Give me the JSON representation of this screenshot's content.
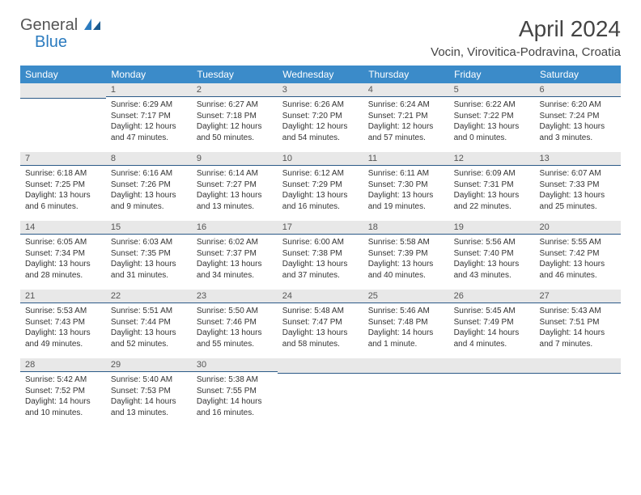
{
  "brand": {
    "general": "General",
    "blue": "Blue"
  },
  "title": "April 2024",
  "location": "Vocin, Virovitica-Podravina, Croatia",
  "colors": {
    "header_bg": "#3b8bc9",
    "header_text": "#ffffff",
    "daynum_bg": "#e8e8e8",
    "daynum_border": "#2c5a88",
    "text": "#333333",
    "title_color": "#444444",
    "logo_blue": "#2b7bbf"
  },
  "weekdays": [
    "Sunday",
    "Monday",
    "Tuesday",
    "Wednesday",
    "Thursday",
    "Friday",
    "Saturday"
  ],
  "weeks": [
    [
      {
        "num": "",
        "sunrise": "",
        "sunset": "",
        "daylight": ""
      },
      {
        "num": "1",
        "sunrise": "Sunrise: 6:29 AM",
        "sunset": "Sunset: 7:17 PM",
        "daylight": "Daylight: 12 hours and 47 minutes."
      },
      {
        "num": "2",
        "sunrise": "Sunrise: 6:27 AM",
        "sunset": "Sunset: 7:18 PM",
        "daylight": "Daylight: 12 hours and 50 minutes."
      },
      {
        "num": "3",
        "sunrise": "Sunrise: 6:26 AM",
        "sunset": "Sunset: 7:20 PM",
        "daylight": "Daylight: 12 hours and 54 minutes."
      },
      {
        "num": "4",
        "sunrise": "Sunrise: 6:24 AM",
        "sunset": "Sunset: 7:21 PM",
        "daylight": "Daylight: 12 hours and 57 minutes."
      },
      {
        "num": "5",
        "sunrise": "Sunrise: 6:22 AM",
        "sunset": "Sunset: 7:22 PM",
        "daylight": "Daylight: 13 hours and 0 minutes."
      },
      {
        "num": "6",
        "sunrise": "Sunrise: 6:20 AM",
        "sunset": "Sunset: 7:24 PM",
        "daylight": "Daylight: 13 hours and 3 minutes."
      }
    ],
    [
      {
        "num": "7",
        "sunrise": "Sunrise: 6:18 AM",
        "sunset": "Sunset: 7:25 PM",
        "daylight": "Daylight: 13 hours and 6 minutes."
      },
      {
        "num": "8",
        "sunrise": "Sunrise: 6:16 AM",
        "sunset": "Sunset: 7:26 PM",
        "daylight": "Daylight: 13 hours and 9 minutes."
      },
      {
        "num": "9",
        "sunrise": "Sunrise: 6:14 AM",
        "sunset": "Sunset: 7:27 PM",
        "daylight": "Daylight: 13 hours and 13 minutes."
      },
      {
        "num": "10",
        "sunrise": "Sunrise: 6:12 AM",
        "sunset": "Sunset: 7:29 PM",
        "daylight": "Daylight: 13 hours and 16 minutes."
      },
      {
        "num": "11",
        "sunrise": "Sunrise: 6:11 AM",
        "sunset": "Sunset: 7:30 PM",
        "daylight": "Daylight: 13 hours and 19 minutes."
      },
      {
        "num": "12",
        "sunrise": "Sunrise: 6:09 AM",
        "sunset": "Sunset: 7:31 PM",
        "daylight": "Daylight: 13 hours and 22 minutes."
      },
      {
        "num": "13",
        "sunrise": "Sunrise: 6:07 AM",
        "sunset": "Sunset: 7:33 PM",
        "daylight": "Daylight: 13 hours and 25 minutes."
      }
    ],
    [
      {
        "num": "14",
        "sunrise": "Sunrise: 6:05 AM",
        "sunset": "Sunset: 7:34 PM",
        "daylight": "Daylight: 13 hours and 28 minutes."
      },
      {
        "num": "15",
        "sunrise": "Sunrise: 6:03 AM",
        "sunset": "Sunset: 7:35 PM",
        "daylight": "Daylight: 13 hours and 31 minutes."
      },
      {
        "num": "16",
        "sunrise": "Sunrise: 6:02 AM",
        "sunset": "Sunset: 7:37 PM",
        "daylight": "Daylight: 13 hours and 34 minutes."
      },
      {
        "num": "17",
        "sunrise": "Sunrise: 6:00 AM",
        "sunset": "Sunset: 7:38 PM",
        "daylight": "Daylight: 13 hours and 37 minutes."
      },
      {
        "num": "18",
        "sunrise": "Sunrise: 5:58 AM",
        "sunset": "Sunset: 7:39 PM",
        "daylight": "Daylight: 13 hours and 40 minutes."
      },
      {
        "num": "19",
        "sunrise": "Sunrise: 5:56 AM",
        "sunset": "Sunset: 7:40 PM",
        "daylight": "Daylight: 13 hours and 43 minutes."
      },
      {
        "num": "20",
        "sunrise": "Sunrise: 5:55 AM",
        "sunset": "Sunset: 7:42 PM",
        "daylight": "Daylight: 13 hours and 46 minutes."
      }
    ],
    [
      {
        "num": "21",
        "sunrise": "Sunrise: 5:53 AM",
        "sunset": "Sunset: 7:43 PM",
        "daylight": "Daylight: 13 hours and 49 minutes."
      },
      {
        "num": "22",
        "sunrise": "Sunrise: 5:51 AM",
        "sunset": "Sunset: 7:44 PM",
        "daylight": "Daylight: 13 hours and 52 minutes."
      },
      {
        "num": "23",
        "sunrise": "Sunrise: 5:50 AM",
        "sunset": "Sunset: 7:46 PM",
        "daylight": "Daylight: 13 hours and 55 minutes."
      },
      {
        "num": "24",
        "sunrise": "Sunrise: 5:48 AM",
        "sunset": "Sunset: 7:47 PM",
        "daylight": "Daylight: 13 hours and 58 minutes."
      },
      {
        "num": "25",
        "sunrise": "Sunrise: 5:46 AM",
        "sunset": "Sunset: 7:48 PM",
        "daylight": "Daylight: 14 hours and 1 minute."
      },
      {
        "num": "26",
        "sunrise": "Sunrise: 5:45 AM",
        "sunset": "Sunset: 7:49 PM",
        "daylight": "Daylight: 14 hours and 4 minutes."
      },
      {
        "num": "27",
        "sunrise": "Sunrise: 5:43 AM",
        "sunset": "Sunset: 7:51 PM",
        "daylight": "Daylight: 14 hours and 7 minutes."
      }
    ],
    [
      {
        "num": "28",
        "sunrise": "Sunrise: 5:42 AM",
        "sunset": "Sunset: 7:52 PM",
        "daylight": "Daylight: 14 hours and 10 minutes."
      },
      {
        "num": "29",
        "sunrise": "Sunrise: 5:40 AM",
        "sunset": "Sunset: 7:53 PM",
        "daylight": "Daylight: 14 hours and 13 minutes."
      },
      {
        "num": "30",
        "sunrise": "Sunrise: 5:38 AM",
        "sunset": "Sunset: 7:55 PM",
        "daylight": "Daylight: 14 hours and 16 minutes."
      },
      {
        "num": "",
        "sunrise": "",
        "sunset": "",
        "daylight": ""
      },
      {
        "num": "",
        "sunrise": "",
        "sunset": "",
        "daylight": ""
      },
      {
        "num": "",
        "sunrise": "",
        "sunset": "",
        "daylight": ""
      },
      {
        "num": "",
        "sunrise": "",
        "sunset": "",
        "daylight": ""
      }
    ]
  ]
}
